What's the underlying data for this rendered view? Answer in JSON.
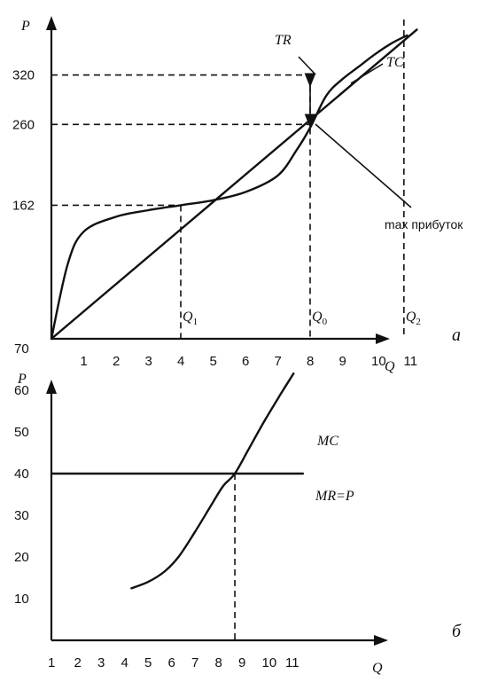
{
  "chart_data": [
    {
      "type": "line",
      "panel_label": "а",
      "xlabel": "Q",
      "ylabel": "P",
      "x_ticks": [
        "1",
        "2",
        "3",
        "4",
        "5",
        "6",
        "7",
        "8",
        "9",
        "10",
        "11"
      ],
      "y_ticks": [
        {
          "value": 162,
          "label": "162"
        },
        {
          "value": 260,
          "label": "260"
        },
        {
          "value": 320,
          "label": "320"
        }
      ],
      "xlim": [
        0,
        11.4
      ],
      "ylim": [
        0,
        380
      ],
      "series": [
        {
          "name": "TR",
          "points": [
            [
              0,
              0
            ],
            [
              11.3,
              375
            ]
          ]
        },
        {
          "name": "TC",
          "points": [
            [
              0,
              0
            ],
            [
              0.5,
              90
            ],
            [
              1,
              130
            ],
            [
              2,
              148
            ],
            [
              3,
              156
            ],
            [
              4,
              162
            ],
            [
              5,
              168
            ],
            [
              6,
              178
            ],
            [
              7,
              198
            ],
            [
              7.6,
              230
            ],
            [
              8,
              256
            ],
            [
              8.5,
              295
            ],
            [
              9,
              315
            ],
            [
              9.5,
              330
            ],
            [
              10,
              345
            ],
            [
              10.5,
              358
            ],
            [
              11,
              368
            ]
          ]
        }
      ],
      "q_markers": [
        {
          "x": 4,
          "label": "Q",
          "sub": "1"
        },
        {
          "x": 8,
          "label": "Q",
          "sub": "0"
        },
        {
          "x": 10.9,
          "label": "Q",
          "sub": "2"
        }
      ],
      "annotations": [
        {
          "text": "TR"
        },
        {
          "text": "TC"
        },
        {
          "text": "max прибуток"
        }
      ]
    },
    {
      "type": "line",
      "panel_label": "б",
      "xlabel": "Q",
      "ylabel": "P",
      "x_ticks": [
        "1",
        "2",
        "3",
        "4",
        "5",
        "6",
        "7",
        "8",
        "9",
        "10",
        "11"
      ],
      "y_ticks": [
        "10",
        "20",
        "30",
        "40",
        "50",
        "60",
        "70"
      ],
      "xlim": [
        1,
        12.3
      ],
      "ylim": [
        0,
        78
      ],
      "series": [
        {
          "name": "MC",
          "points": [
            [
              4.3,
              12.5
            ],
            [
              5,
              14
            ],
            [
              5.7,
              16.5
            ],
            [
              6.3,
              20
            ],
            [
              7,
              26
            ],
            [
              7.7,
              32.5
            ],
            [
              8.2,
              37
            ],
            [
              8.7,
              40
            ],
            [
              9.3,
              46
            ],
            [
              10,
              53
            ],
            [
              10.7,
              59.5
            ],
            [
              11.2,
              64
            ]
          ]
        },
        {
          "name": "MR=P",
          "points": [
            [
              1,
              40
            ],
            [
              11.6,
              40
            ]
          ]
        }
      ],
      "intersection": {
        "x": 8.7,
        "y": 40
      }
    }
  ]
}
